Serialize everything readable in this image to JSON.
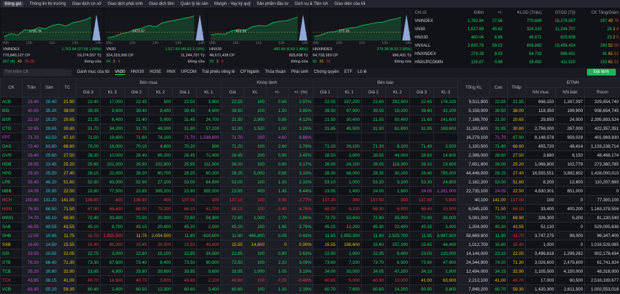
{
  "nav": [
    "Bảng giá",
    "Thông tin thị trường",
    "Giao dịch cơ sở",
    "Giao dịch phái sinh",
    "Giao dịch tiền",
    "Quản lý tài sản",
    "Margin - Vay ký quỹ",
    "Sản phẩm đầu tư",
    "Dịch vụ & Tiện ích",
    "Giao diện của tôi"
  ],
  "mini_charts": {
    "times": [
      "09h",
      "10h",
      "11h",
      "13h",
      "14h"
    ],
    "items": [
      {
        "name": "VNINDEX",
        "ref_label": "1735.78",
        "change": "1,762.84 (27.06 1.56%)",
        "volume": "770,849,127 CP",
        "value": "19,274,557 Tỷ",
        "up": "257 (4)",
        "same": "43",
        "down": "76 (3)",
        "status": "Đóng cửa"
      },
      {
        "name": "VN30",
        "ref_label": "1472.07",
        "change": "1,517.69 (45.62 3.10%)",
        "volume": "324,310,300 CP",
        "value": "11,244,707 Tỷ",
        "up": "24",
        "same": "2",
        "down": "4",
        "status": "Đóng cửa"
      },
      {
        "name": "HNX30",
        "ref_label": "453.35",
        "change": "460.04 (6.69 1.48%)",
        "volume": "48,671,438 CP",
        "value": "825,608 Tỷ",
        "up": "23",
        "same": "2",
        "down": "5",
        "status": "Đóng cửa"
      },
      {
        "name": "HNXINDEX",
        "ref_label": "271.25",
        "change": "279.28 (8.03 2.96%)",
        "volume": "64,733,183 CP",
        "value": "996,431 Tỷ",
        "up": "91",
        "same": "61",
        "down": "51",
        "status": "Đóng cửa"
      }
    ]
  },
  "index_table": {
    "headers": [
      "Chỉ số",
      "Điểm",
      "+/-",
      "KLGD (Triệu)",
      "GTGD (Tỷ)",
      "CK Tăng/Giảm"
    ],
    "rows": [
      [
        "VNINDEX",
        "1,762.84",
        "27.06",
        "770.849",
        "19,274.557",
        "257",
        "43",
        "76"
      ],
      [
        "VN30",
        "1,517.69",
        "45.62",
        "324.310",
        "11,244.707",
        "24",
        "2",
        "4"
      ],
      [
        "HNX30",
        "460.04",
        "6.69",
        "48.671",
        "825.608",
        "23",
        "2",
        "5"
      ],
      [
        "VNXALL",
        "2,830.79",
        "59.02",
        "808.885",
        "19,456.434",
        "293",
        "52",
        "90"
      ],
      [
        "HNXINDEX",
        "279.28",
        "8.03",
        "64.733",
        "996.431",
        "91",
        "61",
        "51"
      ],
      [
        "HNXUPCOMIN",
        "126.67",
        "0.88",
        "28.492",
        "411.520",
        "153",
        "61",
        "91"
      ]
    ]
  },
  "toolbar": {
    "search": "Tìm kiếm CK",
    "tabs": [
      "Danh mục của tôi",
      "VN30",
      "HNX30",
      "HOSE",
      "HNX",
      "UPCOM",
      "Trái phiếu riêng lẻ",
      "CP Ngành",
      "Thỏa thuận",
      "Phái sinh",
      "Chứng quyền",
      "ETF",
      "Lô lẻ"
    ],
    "order_button": "Đặt lệnh"
  },
  "table": {
    "group_headers": [
      "CK",
      "Trần",
      "Sàn",
      "TC",
      "Bên mua",
      "Khớp lệnh",
      "Bên bán",
      "Tổng KL",
      "Cao",
      "Thấp",
      "ĐTNN"
    ],
    "sub_headers": [
      "Giá 3",
      "KL 3",
      "Giá 2",
      "KL 2",
      "Giá 1",
      "KL 1",
      "Giá",
      "KL",
      "+/-",
      "+/- (%)",
      "Giá 1",
      "KL 1",
      "Giá 2",
      "KL 2",
      "Giá 3",
      "KL 3",
      "NN mua",
      "NN bán",
      "Room"
    ],
    "rows": [
      [
        "ACB",
        "23.40",
        "20.40",
        "21.90",
        "22.40",
        "17,000",
        "22.45",
        "500",
        "22.50",
        "3,900",
        "22.55",
        "100",
        "0.65",
        "2.97%",
        "22.55",
        "197,200",
        "22.60",
        "352,500",
        "22.65",
        "176,100",
        "9,511,900",
        "22.55",
        "21.95",
        "698,150",
        "1,267,097",
        "329,654,740"
      ],
      [
        "BID",
        "40.65",
        "35.35",
        "38.00",
        "39.35",
        "9,600",
        "39.40",
        "8,400",
        "39.45",
        "4,600",
        "39.50",
        "100",
        "1.50",
        "3.95%",
        "39.50",
        "97,900",
        "39.55",
        "19,200",
        "39.60",
        "32,100",
        "5,158,000",
        "39.50",
        "38.00",
        "118,350",
        "199,900",
        "908,654,745"
      ],
      [
        "BSR",
        "22.10",
        "19.20",
        "20.65",
        "21.35",
        "6,400",
        "21.40",
        "5,900",
        "21.45",
        "24,700",
        "21.50",
        "2,900",
        "0.85",
        "4.12%",
        "21.50",
        "30,400",
        "21.55",
        "50,400",
        "21.60",
        "141,600",
        "7,166,700",
        "21.50",
        "20.65",
        "29,850",
        "24,000",
        "2,395,893,524"
      ],
      [
        "CTG",
        "32.95",
        "28.65",
        "30.80",
        "31.70",
        "34,200",
        "31.75",
        "46,000",
        "31.80",
        "57,200",
        "31.80",
        "1,500",
        "1.00",
        "3.25%",
        "31.85",
        "45,500",
        "31.90",
        "61,800",
        "31.95",
        "169,600",
        "11,302,600",
        "31.95",
        "30.80",
        "2,756,000",
        "267,000",
        "422,357,351"
      ],
      [
        "FPT",
        "71.70",
        "62.50",
        "67.10",
        "71.50",
        "19,600",
        "71.60",
        "74,100",
        "71.70",
        "1,538,800",
        "71.70",
        "200",
        "4.60",
        "6.86%",
        null,
        null,
        null,
        null,
        null,
        null,
        "16,279,100",
        "71.70",
        "67.90",
        "8,148,578",
        "959,029",
        "401,969,830"
      ],
      [
        "GAS",
        "73.40",
        "63.80",
        "68.60",
        "70.00",
        "18,000",
        "70.10",
        "4,800",
        "70.20",
        "900",
        "71.20",
        "100",
        "2.60",
        "3.79%",
        "71.20",
        "28,100",
        "71.30",
        "8,100",
        "71.40",
        "2,500",
        "1,150,500",
        "71.40",
        "68.60",
        "455,720",
        "48,414",
        "1,133,238,714"
      ],
      [
        "GVR",
        "29.40",
        "25.60",
        "27.50",
        "28.35",
        "10,000",
        "28.40",
        "66,300",
        "28.45",
        "71,400",
        "28.45",
        "200",
        "0.95",
        "3.45%",
        "28.50",
        "3,800",
        "28.55",
        "44,000",
        "28.60",
        "14,600",
        "2,396,000",
        "28.80",
        "27.50",
        "3,680",
        "8,150",
        "48,468,174"
      ],
      [
        "HDB",
        "26.95",
        "23.45",
        "25.20",
        "25.85",
        "101,200",
        "25.90",
        "102,800",
        "25.95",
        "111,500",
        "26.00",
        "100",
        "0.80",
        "3.17%",
        "26.00",
        "24,100",
        "26.05",
        "118,300",
        "26.10",
        "19,600",
        "7,651,800",
        "26.00",
        "25.20",
        "1,066,800",
        "102,779",
        "273,360,785"
      ],
      [
        "HPG",
        "29.30",
        "25.50",
        "27.40",
        "28.15",
        "22,000",
        "28.20",
        "60,700",
        "28.25",
        "60,300",
        "28.25",
        "5,000",
        "0.85",
        "3.10%",
        "28.30",
        "68,000",
        "28.35",
        "30,100",
        "28.40",
        "795,000",
        "44,448,000",
        "28.25",
        "27.40",
        "16,555,551",
        "3,892,802",
        "1,428,000,010"
      ],
      [
        "LPB",
        "55.40",
        "48.20",
        "51.80",
        "52.80",
        "63,000",
        "52.90",
        "27,100",
        "53.00",
        "64,800",
        "53.00",
        "100",
        "1.20",
        "2.32%",
        "53.10",
        "1,000",
        "53.20",
        "9,100",
        "53.30",
        "24,800",
        "2,162,200",
        "53.00",
        "51.80",
        "8,200",
        "12,600",
        "110,207,660"
      ],
      [
        "MBB",
        "24.05",
        "20.95",
        "22.50",
        "23.80",
        "77,500",
        "23.85",
        "309,200",
        "23.90",
        "355,500",
        "23.95",
        "400",
        "1.45",
        "6.44%",
        "23.95",
        "1,400",
        "24.00",
        "1,600",
        "24.05",
        "2,281,000",
        "22,735,100",
        "24.05",
        "22.50",
        "4,630,301",
        "851,000",
        "0"
      ],
      [
        "MCH",
        "150.80",
        "131.20",
        "141.00",
        "136.80",
        "400",
        "136.90",
        "400",
        "137.00",
        "100",
        "137.10",
        "100",
        "-3.90",
        "-2.77%",
        "137.20",
        "300",
        "137.50",
        "300",
        "137.80",
        "5,800",
        "40,100",
        "141.00",
        "137.00",
        "100",
        "0",
        "77,300,100"
      ],
      [
        "MSN",
        "76.50",
        "66.50",
        "71.50",
        "67.90",
        "66,600",
        "68.00",
        "79,300",
        "68.10",
        "61,700",
        "68.10",
        "100",
        "-3.40",
        "-4.76%",
        "68.20",
        "9,100",
        "68.30",
        "6,500",
        "68.40",
        "10,500",
        "6,045,100",
        "71.50",
        "68.10",
        "33,400",
        "400,200",
        "1,163,379,556"
      ],
      [
        "MWG",
        "74.70",
        "65.10",
        "69.90",
        "72.40",
        "33,400",
        "72.50",
        "20,000",
        "72.60",
        "54,900",
        "72.60",
        "1,000",
        "2.70",
        "3.86%",
        "72.70",
        "53,600",
        "72.80",
        "35,000",
        "72.90",
        "38,000",
        "5,091,200",
        "73.00",
        "69.90",
        "326,300",
        "5,200",
        "81,130,540"
      ],
      [
        "SAB",
        "46.55",
        "40.55",
        "43.55",
        "45.10",
        "8,700",
        "45.15",
        "20,400",
        "45.20",
        "2,500",
        "45.20",
        "100",
        "1.65",
        "3.79%",
        "45.25",
        "12,200",
        "45.30",
        "22,400",
        "45.35",
        "3,400",
        "1,204,000",
        "45.30",
        "43.55",
        "52,130",
        "0",
        "529,005,638"
      ],
      [
        "SHB",
        "12.55",
        "10.95",
        "11.75",
        "11.70",
        "1,855,500",
        "11.75",
        "2,054,500",
        "11.80",
        "616,600",
        "11.80",
        "466,800",
        "0.05",
        "0.43%",
        "11.85",
        "1,955,300",
        "11.90",
        "2,925,700",
        "11.95",
        "3,987,500",
        "58,669,800",
        "11.90",
        "11.70",
        "3,747,275",
        "98,000",
        "96,347,400"
      ],
      [
        "SSB",
        "16.60",
        "14.50",
        "15.55",
        "15.40",
        "96,000",
        "15.45",
        "26,000",
        "15.50",
        "40,600",
        "15.55",
        "14,600",
        "0",
        "0.00%",
        "15.55",
        "158,600",
        "15.60",
        "157,100",
        "15.65",
        "44,400",
        "1,012,700",
        "15.60",
        "15.40",
        "1,000",
        "0",
        "1,016,529,085"
      ],
      [
        "SSI",
        "23.55",
        "20.55",
        "22.05",
        "22.75",
        "3,000",
        "22.80",
        "16,100",
        "22.85",
        "34,500",
        "22.85",
        "100",
        "0.80",
        "3.63%",
        "22.90",
        "1,900",
        "22.95",
        "6,400",
        "23.00",
        "120,000",
        "14,144,000",
        "23.10",
        "22.05",
        "3,496,618",
        "1,299,262",
        "902,178,434"
      ],
      [
        "STB",
        "76.20",
        "66.40",
        "71.30",
        "73.30",
        "67,600",
        "73.40",
        "8,400",
        "73.50",
        "90,800",
        "73.50",
        "100",
        "2.20",
        "3.09%",
        "73.60",
        "7,200",
        "73.70",
        "6,500",
        "73.80",
        "47,900",
        "24,344,900",
        "74.20",
        "71.30",
        "3,026,600",
        "2,479,600",
        "61,741,924"
      ],
      [
        "TCB",
        "35.20",
        "30.60",
        "32.90",
        "33.85",
        "4,900",
        "33.90",
        "29,600",
        "33.95",
        "9,600",
        "33.95",
        "1,000",
        "1.05",
        "3.19%",
        "34.00",
        "33,000",
        "34.05",
        "47,200",
        "34.10",
        "1,800",
        "12,494,000",
        "34.15",
        "32.90",
        "1,105,000",
        "4,150,000",
        "48,316,000"
      ],
      [
        "TCX",
        "43.85",
        "38.15",
        "41.00",
        "40.70",
        "14,500",
        "40.75",
        "3,800",
        "40.80",
        "2,100",
        "40.80",
        "100",
        "-0.20",
        "-0.49%",
        "40.85",
        "5,000",
        "40.90",
        "10,000",
        "41.00",
        "63,900",
        "2,212,100",
        "41.00",
        "40.70",
        "17,000",
        "60,500",
        "2,516,339,677"
      ],
      [
        "VCB",
        "63.40",
        "55.20",
        "59.30",
        "60.40",
        "2,400",
        "60.50",
        "12,300",
        "60.60",
        "3,400",
        "60.60",
        "100",
        "1.30",
        "2.19%",
        "60.70",
        "7,600",
        "60.80",
        "14,200",
        "60.90",
        "9,800",
        "7,849,200",
        "60.70",
        "59.30",
        "1,420,300",
        "2,611,500",
        "1,002,553,018"
      ]
    ]
  }
}
